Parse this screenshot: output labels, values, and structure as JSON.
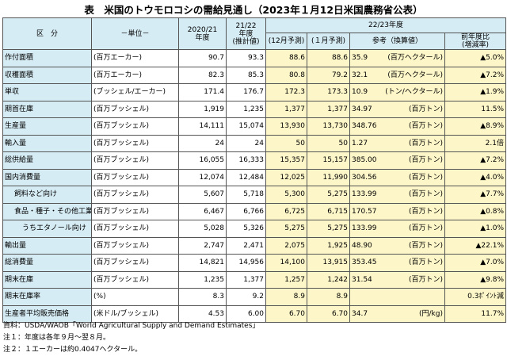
{
  "title": "表　米国のトウモロコシの需給見通し（2023年１月12日米国農務省公表）",
  "header": {
    "item": "区　分",
    "unit": "－単位－",
    "col2020_l1": "2020/21",
    "col2020_l2": "年度",
    "col2122_l1": "21/22",
    "col2122_l2": "年度",
    "col2122_l3": "(推計値)",
    "col2223": "22/23年度",
    "dec": "(12月予測)",
    "jan": "(１月予測)",
    "ref": "参考（換算値）",
    "yoy_l1": "前年度比",
    "yoy_l2": "(増減率)"
  },
  "rows": [
    {
      "label": "作付面積",
      "unit": "(百万エーカー)",
      "v2021": "90.7",
      "v2122": "93.3",
      "dec": "88.6",
      "jan": "88.6",
      "ref": "35.9",
      "ref_unit": "(百万ヘクタール)",
      "yoy": "▲5.0%",
      "indent": 0
    },
    {
      "label": "収穫面積",
      "unit": "(百万エーカー)",
      "v2021": "82.3",
      "v2122": "85.3",
      "dec": "80.8",
      "jan": "79.2",
      "ref": "32.1",
      "ref_unit": "(百万ヘクタール)",
      "yoy": "▲7.2%",
      "indent": 0
    },
    {
      "label": "単収",
      "unit": "(ブッシェル/エーカー)",
      "v2021": "171.4",
      "v2122": "176.7",
      "dec": "172.3",
      "jan": "173.3",
      "ref": "10.9",
      "ref_unit": "(トン/ヘクタール)",
      "yoy": "▲1.9%",
      "indent": 0
    },
    {
      "label": "期首在庫",
      "unit": "(百万ブッシェル)",
      "v2021": "1,919",
      "v2122": "1,235",
      "dec": "1,377",
      "jan": "1,377",
      "ref": "34.97",
      "ref_unit": "(百万トン)",
      "yoy": "11.5%",
      "indent": 0
    },
    {
      "label": "生産量",
      "unit": "(百万ブッシェル)",
      "v2021": "14,111",
      "v2122": "15,074",
      "dec": "13,930",
      "jan": "13,730",
      "ref": "348.76",
      "ref_unit": "(百万トン)",
      "yoy": "▲8.9%",
      "indent": 0
    },
    {
      "label": "輸入量",
      "unit": "(百万ブッシェル)",
      "v2021": "24",
      "v2122": "24",
      "dec": "50",
      "jan": "50",
      "ref": "1.27",
      "ref_unit": "(百万トン)",
      "yoy": "2.1倍",
      "indent": 0
    },
    {
      "label": "総供給量",
      "unit": "(百万ブッシェル)",
      "v2021": "16,055",
      "v2122": "16,333",
      "dec": "15,357",
      "jan": "15,157",
      "ref": "385.00",
      "ref_unit": "(百万トン)",
      "yoy": "▲7.2%",
      "indent": 0
    },
    {
      "label": "国内消費量",
      "unit": "(百万ブッシェル)",
      "v2021": "12,074",
      "v2122": "12,484",
      "dec": "12,025",
      "jan": "11,990",
      "ref": "304.56",
      "ref_unit": "(百万トン)",
      "yoy": "▲4.0%",
      "indent": 0
    },
    {
      "label": "飼料など向け",
      "unit": "(百万ブッシェル)",
      "v2021": "5,607",
      "v2122": "5,718",
      "dec": "5,300",
      "jan": "5,275",
      "ref": "133.99",
      "ref_unit": "(百万トン)",
      "yoy": "▲7.7%",
      "indent": 1
    },
    {
      "label": "食品・種子・その他工業向け",
      "unit": "(百万ブッシェル)",
      "v2021": "6,467",
      "v2122": "6,766",
      "dec": "6,725",
      "jan": "6,715",
      "ref": "170.57",
      "ref_unit": "(百万トン)",
      "yoy": "▲0.8%",
      "indent": 2
    },
    {
      "label": "うちエタノール向け",
      "unit": "(百万ブッシェル)",
      "v2021": "5,028",
      "v2122": "5,326",
      "dec": "5,275",
      "jan": "5,275",
      "ref": "133.99",
      "ref_unit": "(百万トン)",
      "yoy": "▲1.0%",
      "indent": 3
    },
    {
      "label": "輸出量",
      "unit": "(百万ブッシェル)",
      "v2021": "2,747",
      "v2122": "2,471",
      "dec": "2,075",
      "jan": "1,925",
      "ref": "48.90",
      "ref_unit": "(百万トン)",
      "yoy": "▲22.1%",
      "indent": 0
    },
    {
      "label": "総消費量",
      "unit": "(百万ブッシェル)",
      "v2021": "14,821",
      "v2122": "14,956",
      "dec": "14,100",
      "jan": "13,915",
      "ref": "353.45",
      "ref_unit": "(百万トン)",
      "yoy": "▲7.0%",
      "indent": 0
    },
    {
      "label": "期末在庫",
      "unit": "(百万ブッシェル)",
      "v2021": "1,235",
      "v2122": "1,377",
      "dec": "1,257",
      "jan": "1,242",
      "ref": "31.54",
      "ref_unit": "(百万トン)",
      "yoy": "▲9.8%",
      "indent": 0
    },
    {
      "label": "期末在庫率",
      "unit": "(%)",
      "v2021": "8.3",
      "v2122": "9.2",
      "dec": "8.9",
      "jan": "8.9",
      "ref": "",
      "ref_unit": "",
      "yoy": "0.3ﾎﾟｲﾝﾄ減",
      "indent": 0
    },
    {
      "label": "生産者平均販売価格",
      "unit": "(米ドル/ブッシェル)",
      "v2021": "4.53",
      "v2122": "6.00",
      "dec": "6.70",
      "jan": "6.70",
      "ref": "34.7",
      "ref_unit": "(円/kg)",
      "yoy": "11.7%",
      "indent": 0
    }
  ],
  "notes": {
    "source": "資料：USDA/WAOB「World Agricultural Supply and Demand Estimates」",
    "note1": "注１：年度は各年９月～翌８月。",
    "note2": "注２：１エーカーは約0.4047ヘクタール。"
  }
}
